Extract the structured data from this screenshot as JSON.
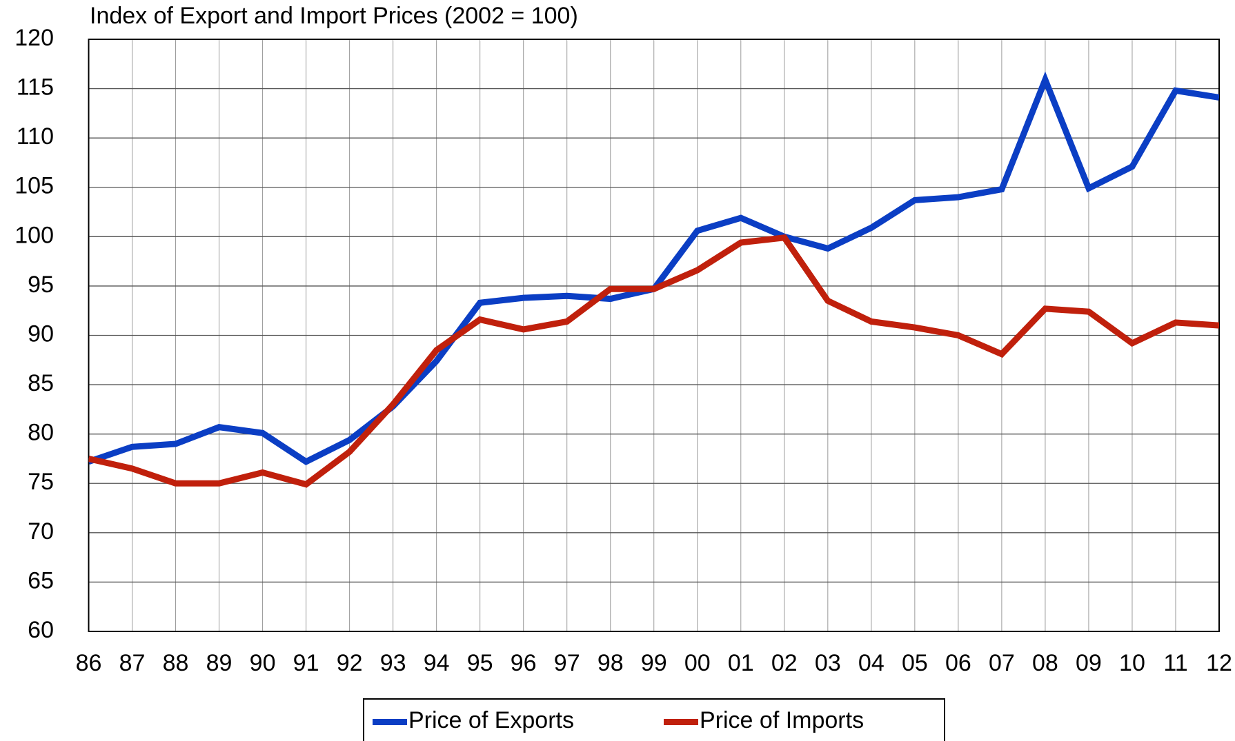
{
  "chart_data": {
    "type": "line",
    "title": "Index of Export and Import Prices (2002 = 100)",
    "categories": [
      "86",
      "87",
      "88",
      "89",
      "90",
      "91",
      "92",
      "93",
      "94",
      "95",
      "96",
      "97",
      "98",
      "99",
      "00",
      "01",
      "02",
      "03",
      "04",
      "05",
      "06",
      "07",
      "08",
      "09",
      "10",
      "11",
      "12"
    ],
    "series": [
      {
        "name": "Price of Exports",
        "color": "#0b3ec4",
        "values": [
          77.2,
          78.7,
          79.0,
          80.7,
          80.1,
          77.2,
          79.4,
          82.8,
          87.4,
          93.3,
          93.8,
          94.0,
          93.7,
          94.7,
          100.6,
          101.9,
          100.0,
          98.8,
          100.9,
          103.7,
          104.0,
          104.8,
          115.9,
          104.9,
          107.1,
          114.8,
          114.1
        ]
      },
      {
        "name": "Price of Imports",
        "color": "#c0200c",
        "values": [
          77.5,
          76.5,
          75.0,
          75.0,
          76.1,
          74.9,
          78.2,
          83.0,
          88.5,
          91.6,
          90.6,
          91.4,
          94.7,
          94.7,
          96.6,
          99.4,
          99.9,
          93.5,
          91.4,
          90.8,
          90.0,
          88.1,
          92.7,
          92.4,
          89.2,
          91.3,
          91.0
        ]
      }
    ],
    "ylim": [
      60,
      120
    ],
    "yticks": [
      60,
      65,
      70,
      75,
      80,
      85,
      90,
      95,
      100,
      105,
      110,
      115,
      120
    ],
    "grid": true,
    "legend": "bottom"
  }
}
